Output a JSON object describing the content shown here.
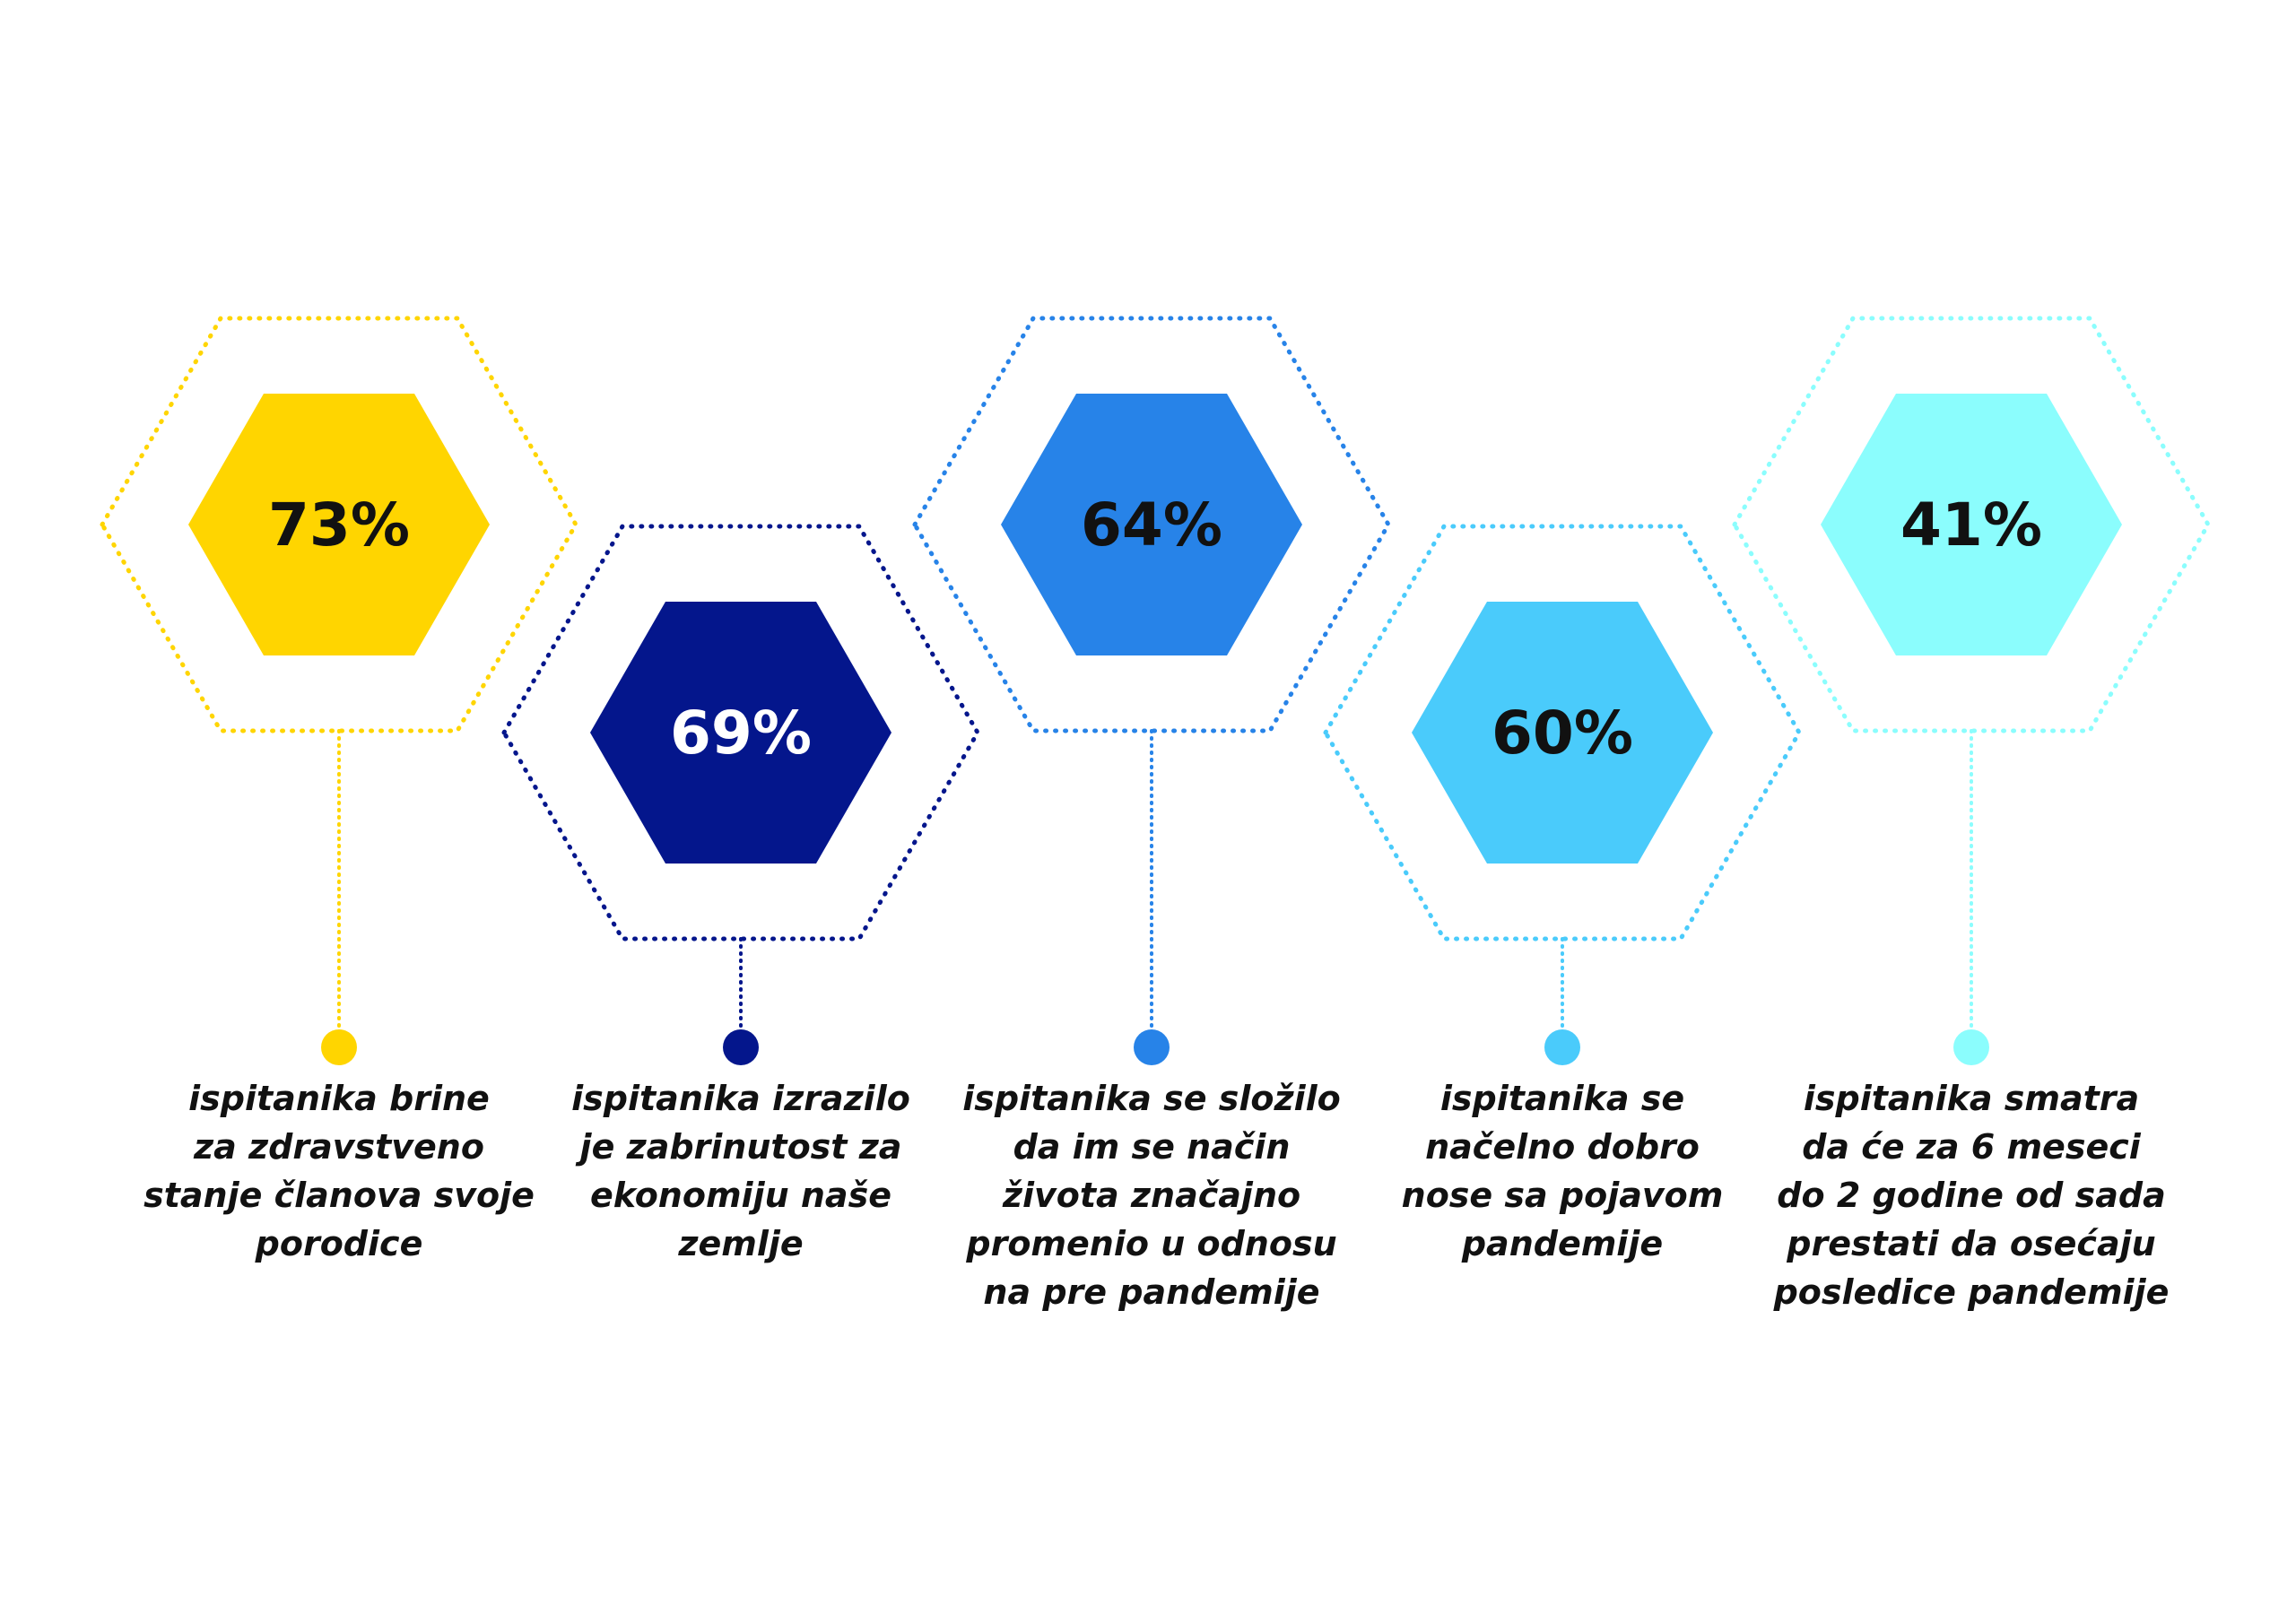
{
  "chart_data": {
    "type": "infographic",
    "stats": [
      {
        "value": "73%",
        "caption": [
          "ispitanika brine",
          "za zdravstveno",
          "stanje članova svoje",
          "porodice"
        ],
        "color": "#ffd500",
        "text_color": "#111111"
      },
      {
        "value": "69%",
        "caption": [
          "ispitanika izrazilo",
          "je zabrinutost za",
          "ekonomiju naše",
          "zemlje"
        ],
        "color": "#04168c",
        "text_color": "#ffffff"
      },
      {
        "value": "64%",
        "caption": [
          "ispitanika se složilo",
          "da im se način",
          "života značajno",
          "promenio u odnosu",
          "na pre pandemije"
        ],
        "color": "#2783e8",
        "text_color": "#111111"
      },
      {
        "value": "60%",
        "caption": [
          "ispitanika se",
          "načelno dobro",
          "nose sa pojavom",
          "pandemije"
        ],
        "color": "#4acbfb",
        "text_color": "#111111"
      },
      {
        "value": "41%",
        "caption": [
          "ispitanika smatra",
          "da će za 6 meseci",
          "do 2 godine od sada",
          "prestati da osećaju",
          "posledice pandemije"
        ],
        "color": "#8bfdfd",
        "text_color": "#111111"
      }
    ]
  }
}
